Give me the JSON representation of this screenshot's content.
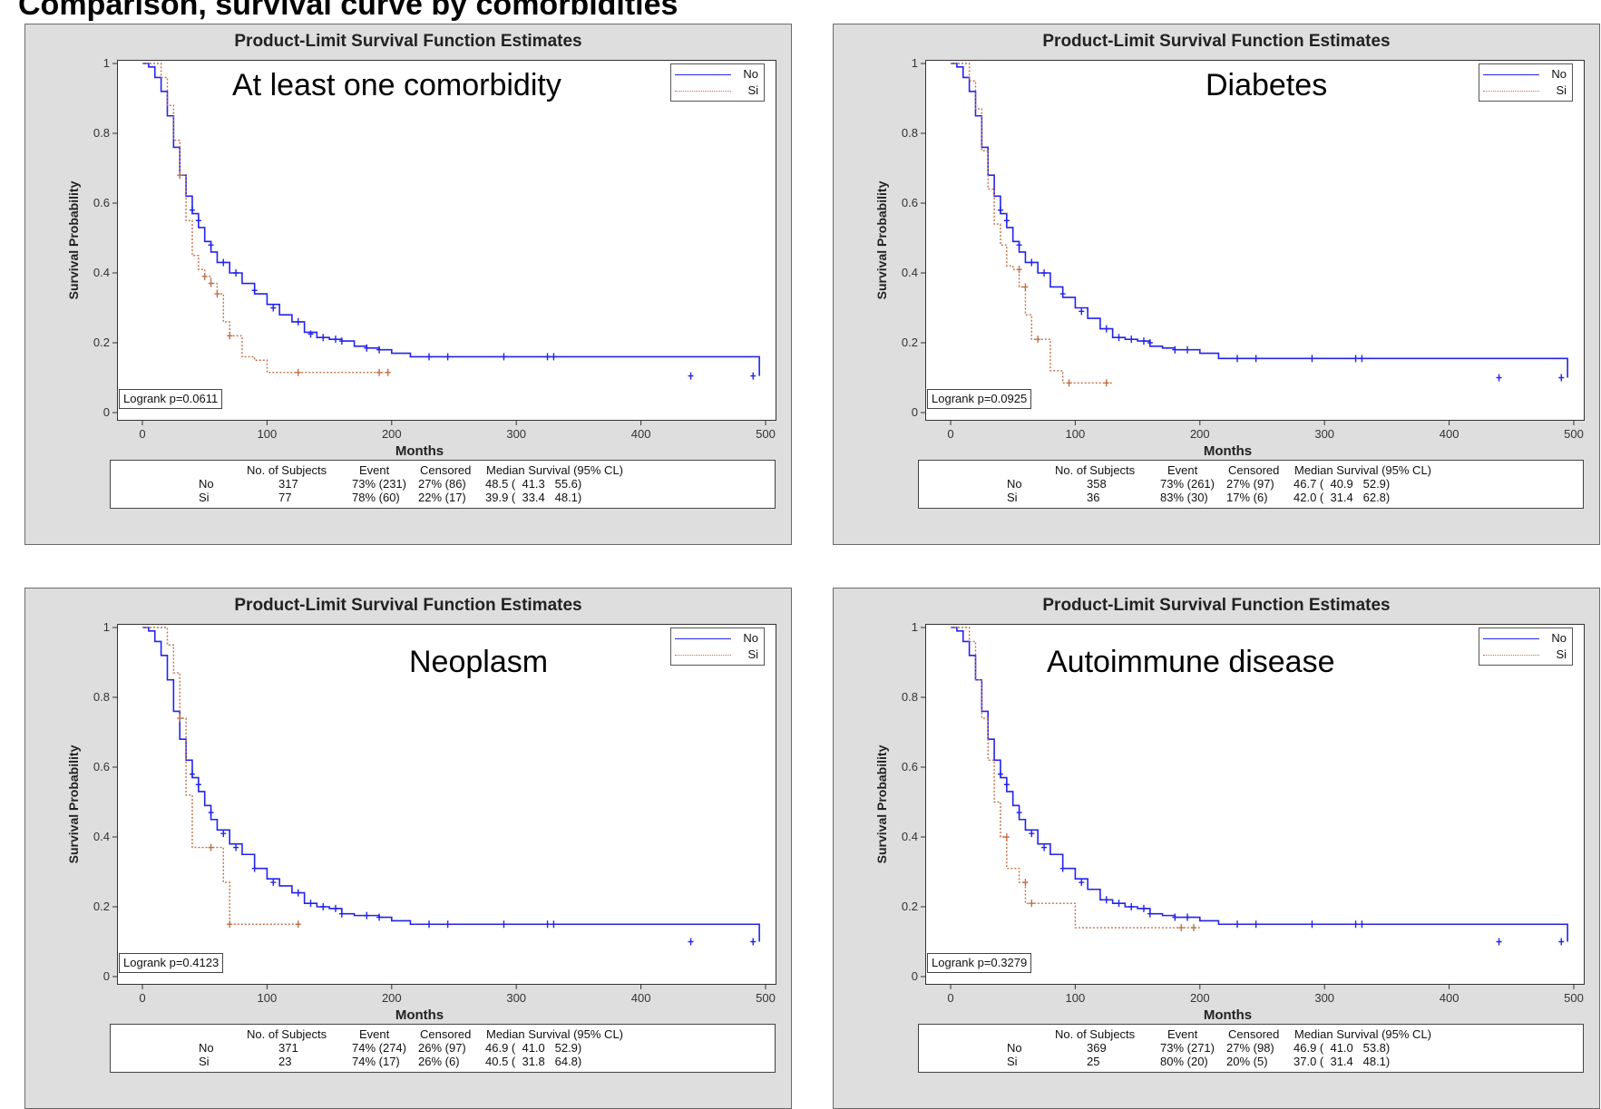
{
  "page_caption": "Comparison, survival curve by comorbidities",
  "panels": [
    {
      "title": "Product-Limit Survival Function Estimates",
      "label": "At least one comorbidity",
      "legend": [
        "No",
        "Si"
      ],
      "logrank": "Logrank p=0.0611",
      "table": {
        "headers": [
          "No. of Subjects",
          "Event",
          "Censored",
          "Median Survival (95% CL)"
        ],
        "rows": [
          {
            "group": "No",
            "subjects": "317",
            "event": "73% (231)",
            "censored": "27% (86)",
            "median": "48.5 (  41.3   55.6)"
          },
          {
            "group": "Si",
            "subjects": "77",
            "event": "78% (60)",
            "censored": "22% (17)",
            "median": "39.9 (  33.4   48.1)"
          }
        ]
      }
    },
    {
      "title": "Product-Limit Survival Function Estimates",
      "label": "Diabetes",
      "legend": [
        "No",
        "Si"
      ],
      "logrank": "Logrank p=0.0925",
      "table": {
        "headers": [
          "No. of Subjects",
          "Event",
          "Censored",
          "Median Survival (95% CL)"
        ],
        "rows": [
          {
            "group": "No",
            "subjects": "358",
            "event": "73% (261)",
            "censored": "27% (97)",
            "median": "46.7 (  40.9   52.9)"
          },
          {
            "group": "Si",
            "subjects": "36",
            "event": "83% (30)",
            "censored": "17% (6)",
            "median": "42.0 (  31.4   62.8)"
          }
        ]
      }
    },
    {
      "title": "Product-Limit Survival Function Estimates",
      "label": "Neoplasm",
      "legend": [
        "No",
        "Si"
      ],
      "logrank": "Logrank p=0.4123",
      "table": {
        "headers": [
          "No. of Subjects",
          "Event",
          "Censored",
          "Median Survival (95% CL)"
        ],
        "rows": [
          {
            "group": "No",
            "subjects": "371",
            "event": "74% (274)",
            "censored": "26% (97)",
            "median": "46.9 (  41.0   52.9)"
          },
          {
            "group": "Si",
            "subjects": "23",
            "event": "74% (17)",
            "censored": "26% (6)",
            "median": "40.5 (  31.8   64.8)"
          }
        ]
      }
    },
    {
      "title": "Product-Limit Survival Function Estimates",
      "label": "Autoimmune disease",
      "legend": [
        "No",
        "Si"
      ],
      "logrank": "Logrank p=0.3279",
      "table": {
        "headers": [
          "No. of Subjects",
          "Event",
          "Censored",
          "Median Survival (95% CL)"
        ],
        "rows": [
          {
            "group": "No",
            "subjects": "369",
            "event": "73% (271)",
            "censored": "27% (98)",
            "median": "46.9 (  41.0   53.8)"
          },
          {
            "group": "Si",
            "subjects": "25",
            "event": "80% (20)",
            "censored": "20% (5)",
            "median": "37.0 (  31.4   48.1)"
          }
        ]
      }
    }
  ],
  "chart_data": [
    {
      "type": "line",
      "step": true,
      "title": "Product-Limit Survival Function Estimates",
      "xlabel": "Months",
      "ylabel": "Survival Probability",
      "xlim": [
        0,
        500
      ],
      "ylim": [
        0,
        1
      ],
      "xticks": [
        0,
        100,
        200,
        300,
        400,
        500
      ],
      "yticks": [
        0,
        0.2,
        0.4,
        0.6,
        0.8,
        1
      ],
      "legend_position": "top-right",
      "colors": {
        "No": "#2323ee",
        "Si": "#c0704a"
      },
      "series": [
        {
          "name": "No",
          "x": [
            0,
            5,
            10,
            15,
            20,
            25,
            30,
            35,
            40,
            45,
            50,
            55,
            60,
            70,
            80,
            90,
            100,
            110,
            120,
            130,
            140,
            150,
            160,
            170,
            180,
            190,
            200,
            215,
            380,
            495
          ],
          "y": [
            1,
            0.99,
            0.96,
            0.92,
            0.85,
            0.76,
            0.68,
            0.62,
            0.57,
            0.53,
            0.49,
            0.46,
            0.43,
            0.4,
            0.37,
            0.34,
            0.31,
            0.28,
            0.26,
            0.23,
            0.215,
            0.21,
            0.205,
            0.19,
            0.185,
            0.18,
            0.17,
            0.16,
            0.16,
            0.105
          ],
          "censored_x": [
            40,
            45,
            55,
            65,
            75,
            90,
            105,
            125,
            135,
            145,
            155,
            160,
            180,
            190,
            230,
            245,
            290,
            325,
            330,
            440,
            490
          ],
          "censored_y": [
            0.58,
            0.55,
            0.48,
            0.43,
            0.4,
            0.35,
            0.3,
            0.26,
            0.225,
            0.215,
            0.21,
            0.205,
            0.185,
            0.18,
            0.16,
            0.16,
            0.16,
            0.16,
            0.16,
            0.105,
            0.105
          ]
        },
        {
          "name": "Si",
          "x": [
            0,
            15,
            20,
            25,
            30,
            35,
            40,
            45,
            50,
            55,
            60,
            65,
            70,
            80,
            90,
            100,
            120,
            200
          ],
          "y": [
            1,
            0.96,
            0.88,
            0.78,
            0.68,
            0.55,
            0.45,
            0.41,
            0.39,
            0.37,
            0.34,
            0.26,
            0.22,
            0.16,
            0.15,
            0.115,
            0.115,
            0.115
          ],
          "censored_x": [
            30,
            50,
            55,
            60,
            70,
            125,
            190,
            197
          ],
          "censored_y": [
            0.68,
            0.39,
            0.37,
            0.34,
            0.22,
            0.115,
            0.115,
            0.115
          ]
        }
      ]
    },
    {
      "type": "line",
      "step": true,
      "title": "Product-Limit Survival Function Estimates",
      "xlabel": "Months",
      "ylabel": "Survival Probability",
      "xlim": [
        0,
        500
      ],
      "ylim": [
        0,
        1
      ],
      "xticks": [
        0,
        100,
        200,
        300,
        400,
        500
      ],
      "yticks": [
        0,
        0.2,
        0.4,
        0.6,
        0.8,
        1
      ],
      "legend_position": "top-right",
      "colors": {
        "No": "#2323ee",
        "Si": "#c0704a"
      },
      "series": [
        {
          "name": "No",
          "x": [
            0,
            5,
            10,
            15,
            20,
            25,
            30,
            35,
            40,
            45,
            50,
            55,
            60,
            70,
            80,
            90,
            100,
            110,
            120,
            130,
            140,
            150,
            160,
            170,
            180,
            190,
            200,
            215,
            380,
            495
          ],
          "y": [
            1,
            0.99,
            0.96,
            0.92,
            0.85,
            0.76,
            0.68,
            0.62,
            0.57,
            0.53,
            0.49,
            0.46,
            0.43,
            0.4,
            0.36,
            0.33,
            0.3,
            0.27,
            0.24,
            0.215,
            0.21,
            0.205,
            0.19,
            0.185,
            0.18,
            0.18,
            0.17,
            0.155,
            0.155,
            0.1
          ],
          "censored_x": [
            40,
            45,
            55,
            65,
            75,
            90,
            105,
            125,
            135,
            145,
            155,
            160,
            180,
            190,
            230,
            245,
            290,
            325,
            330,
            440,
            490
          ],
          "censored_y": [
            0.58,
            0.55,
            0.48,
            0.43,
            0.4,
            0.34,
            0.29,
            0.24,
            0.215,
            0.21,
            0.205,
            0.2,
            0.18,
            0.18,
            0.155,
            0.155,
            0.155,
            0.155,
            0.155,
            0.1,
            0.1
          ]
        },
        {
          "name": "Si",
          "x": [
            0,
            15,
            20,
            25,
            30,
            35,
            40,
            45,
            50,
            55,
            60,
            65,
            70,
            80,
            90,
            100,
            130
          ],
          "y": [
            1,
            0.95,
            0.87,
            0.75,
            0.64,
            0.54,
            0.48,
            0.42,
            0.41,
            0.36,
            0.28,
            0.21,
            0.21,
            0.12,
            0.085,
            0.085,
            0.085
          ],
          "censored_x": [
            55,
            60,
            70,
            95,
            125
          ],
          "censored_y": [
            0.41,
            0.36,
            0.21,
            0.085,
            0.085
          ]
        }
      ]
    },
    {
      "type": "line",
      "step": true,
      "title": "Product-Limit Survival Function Estimates",
      "xlabel": "Months",
      "ylabel": "Survival Probability",
      "xlim": [
        0,
        500
      ],
      "ylim": [
        0,
        1
      ],
      "xticks": [
        0,
        100,
        200,
        300,
        400,
        500
      ],
      "yticks": [
        0,
        0.2,
        0.4,
        0.6,
        0.8,
        1
      ],
      "legend_position": "top-right",
      "colors": {
        "No": "#2323ee",
        "Si": "#c0704a"
      },
      "series": [
        {
          "name": "No",
          "x": [
            0,
            5,
            10,
            15,
            20,
            25,
            30,
            35,
            40,
            45,
            50,
            55,
            60,
            70,
            80,
            90,
            100,
            110,
            120,
            130,
            140,
            150,
            160,
            170,
            180,
            190,
            200,
            215,
            380,
            495
          ],
          "y": [
            1,
            0.99,
            0.96,
            0.92,
            0.85,
            0.76,
            0.68,
            0.62,
            0.57,
            0.53,
            0.49,
            0.45,
            0.42,
            0.38,
            0.35,
            0.31,
            0.28,
            0.26,
            0.24,
            0.21,
            0.2,
            0.195,
            0.18,
            0.175,
            0.175,
            0.17,
            0.16,
            0.15,
            0.15,
            0.1
          ],
          "censored_x": [
            40,
            45,
            55,
            65,
            75,
            90,
            105,
            125,
            135,
            145,
            155,
            160,
            180,
            190,
            230,
            245,
            290,
            325,
            330,
            440,
            490
          ],
          "censored_y": [
            0.58,
            0.55,
            0.47,
            0.41,
            0.37,
            0.31,
            0.27,
            0.24,
            0.21,
            0.2,
            0.195,
            0.18,
            0.175,
            0.17,
            0.15,
            0.15,
            0.15,
            0.15,
            0.15,
            0.1,
            0.1
          ]
        },
        {
          "name": "Si",
          "x": [
            0,
            15,
            20,
            25,
            30,
            35,
            40,
            45,
            55,
            60,
            65,
            70,
            125
          ],
          "y": [
            1,
            1,
            0.95,
            0.87,
            0.74,
            0.52,
            0.37,
            0.37,
            0.37,
            0.37,
            0.27,
            0.15,
            0.15
          ],
          "censored_x": [
            30,
            55,
            70,
            125
          ],
          "censored_y": [
            0.74,
            0.37,
            0.15,
            0.15
          ]
        }
      ]
    },
    {
      "type": "line",
      "step": true,
      "title": "Product-Limit Survival Function Estimates",
      "xlabel": "Months",
      "ylabel": "Survival Probability",
      "xlim": [
        0,
        500
      ],
      "ylim": [
        0,
        1
      ],
      "xticks": [
        0,
        100,
        200,
        300,
        400,
        500
      ],
      "yticks": [
        0,
        0.2,
        0.4,
        0.6,
        0.8,
        1
      ],
      "legend_position": "top-right",
      "colors": {
        "No": "#2323ee",
        "Si": "#c0704a"
      },
      "series": [
        {
          "name": "No",
          "x": [
            0,
            5,
            10,
            15,
            20,
            25,
            30,
            35,
            40,
            45,
            50,
            55,
            60,
            70,
            80,
            90,
            100,
            110,
            120,
            130,
            140,
            150,
            160,
            170,
            180,
            190,
            200,
            215,
            380,
            495
          ],
          "y": [
            1,
            0.99,
            0.96,
            0.92,
            0.85,
            0.76,
            0.68,
            0.62,
            0.57,
            0.53,
            0.49,
            0.45,
            0.42,
            0.38,
            0.35,
            0.31,
            0.28,
            0.25,
            0.22,
            0.21,
            0.2,
            0.195,
            0.18,
            0.175,
            0.17,
            0.17,
            0.16,
            0.15,
            0.15,
            0.1
          ],
          "censored_x": [
            40,
            45,
            55,
            65,
            75,
            90,
            105,
            125,
            135,
            145,
            155,
            160,
            180,
            190,
            230,
            245,
            290,
            325,
            330,
            440,
            490
          ],
          "censored_y": [
            0.58,
            0.55,
            0.47,
            0.41,
            0.37,
            0.31,
            0.27,
            0.22,
            0.21,
            0.2,
            0.195,
            0.18,
            0.17,
            0.17,
            0.15,
            0.15,
            0.15,
            0.15,
            0.15,
            0.1,
            0.1
          ]
        },
        {
          "name": "Si",
          "x": [
            0,
            15,
            20,
            25,
            30,
            35,
            40,
            45,
            50,
            55,
            60,
            65,
            70,
            100,
            200
          ],
          "y": [
            1,
            0.96,
            0.85,
            0.74,
            0.62,
            0.5,
            0.4,
            0.31,
            0.31,
            0.27,
            0.21,
            0.21,
            0.21,
            0.14,
            0.14
          ],
          "censored_x": [
            45,
            60,
            65,
            185,
            195
          ],
          "censored_y": [
            0.4,
            0.27,
            0.21,
            0.14,
            0.14
          ]
        }
      ]
    }
  ]
}
